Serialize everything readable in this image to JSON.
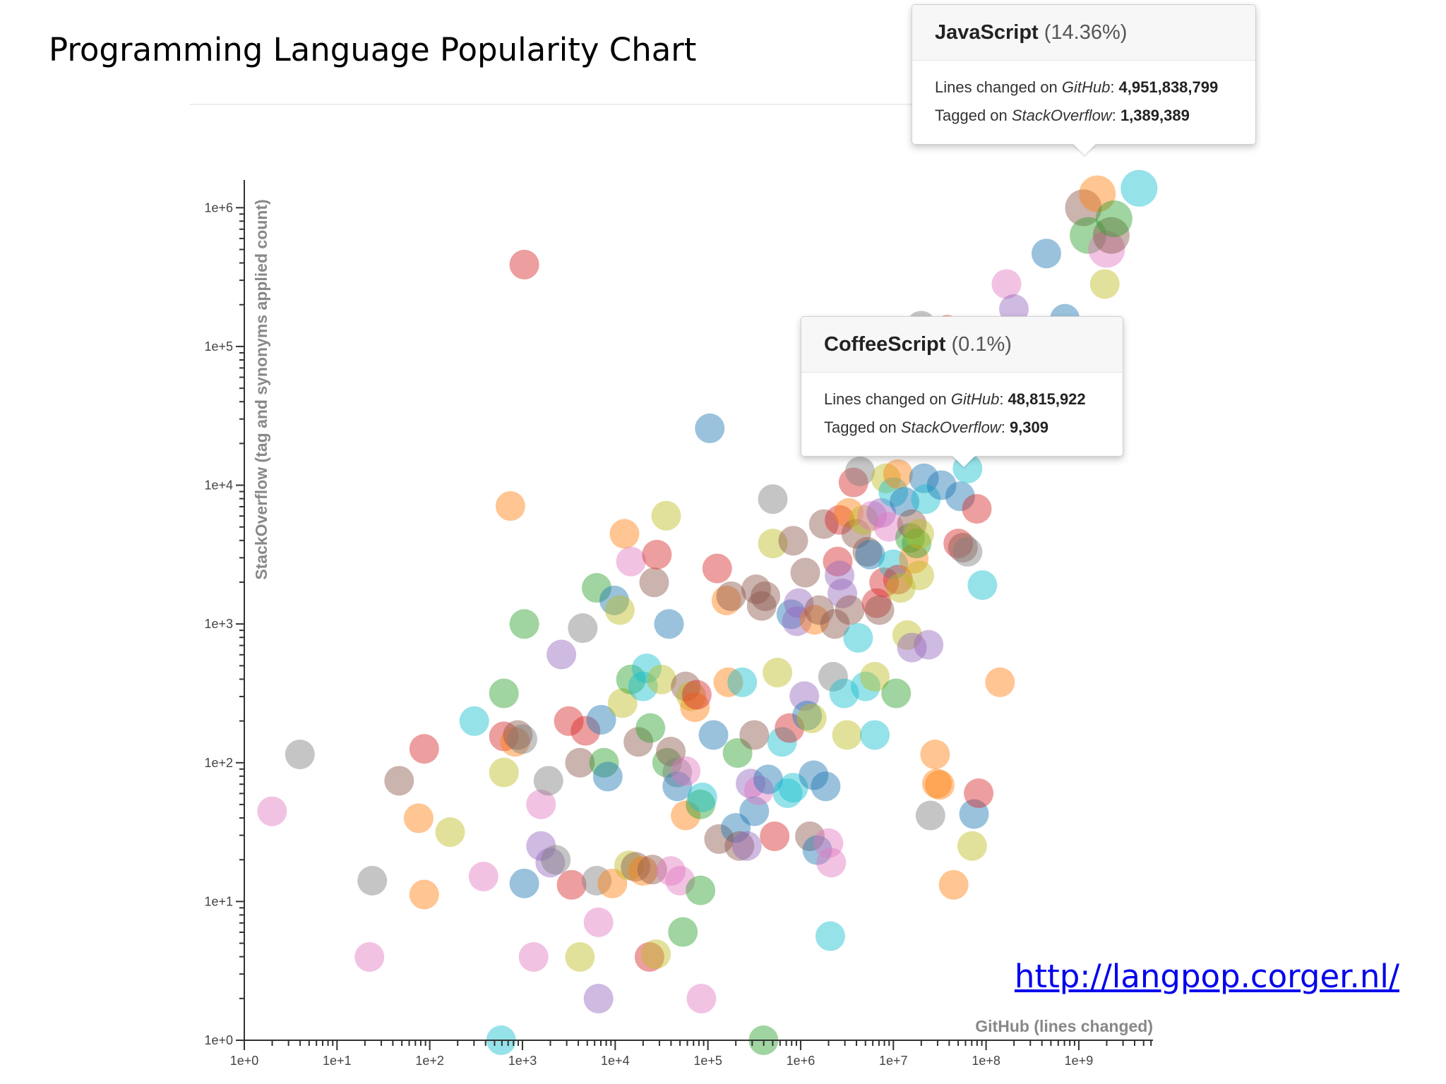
{
  "slide": {
    "title": "Programming Language Popularity Chart",
    "link": "http://langpop.corger.nl/"
  },
  "tooltips": [
    {
      "language": "JavaScript",
      "percent": "(14.36%)",
      "github_label": "Lines changed on ",
      "github_site": "GitHub",
      "github_value": "4,951,838,799",
      "so_label": "Tagged on ",
      "so_site": "StackOverflow",
      "so_value": "1,389,389"
    },
    {
      "language": "CoffeeScript",
      "percent": "(0.1%)",
      "github_label": "Lines changed on ",
      "github_site": "GitHub",
      "github_value": "48,815,922",
      "so_label": "Tagged on ",
      "so_site": "StackOverflow",
      "so_value": "9,309"
    }
  ],
  "chart_data": {
    "type": "scatter",
    "title": "",
    "xlabel": "GitHub (lines changed)",
    "ylabel": "StackOverflow (tag and synonyms applied count)",
    "xscale": "log",
    "yscale": "log",
    "xlim_exp": [
      0,
      9.8
    ],
    "ylim_exp": [
      0,
      6.2
    ],
    "x_ticks": [
      "1e+0",
      "1e+1",
      "1e+2",
      "1e+3",
      "1e+4",
      "1e+5",
      "1e+6",
      "1e+7",
      "1e+8",
      "1e+9"
    ],
    "y_ticks": [
      "1e+0",
      "1e+1",
      "1e+2",
      "1e+3",
      "1e+4",
      "1e+5",
      "1e+6"
    ],
    "grid": false,
    "marker_opacity": 0.45,
    "palette": [
      "#1f77b4",
      "#ff7f0e",
      "#2ca02c",
      "#d62728",
      "#9467bd",
      "#8c564b",
      "#e377c2",
      "#7f7f7f",
      "#bcbd22",
      "#17becf"
    ],
    "points_note": "points as [log10 GitHub lines, log10 StackOverflow count, color index]",
    "points": [
      [
        0.3,
        1.65,
        6
      ],
      [
        0.6,
        2.06,
        7
      ],
      [
        1.35,
        0.6,
        6
      ],
      [
        1.38,
        1.15,
        7
      ],
      [
        1.67,
        1.87,
        5
      ],
      [
        1.88,
        1.6,
        1
      ],
      [
        1.94,
        1.05,
        1
      ],
      [
        1.94,
        2.1,
        3
      ],
      [
        2.22,
        1.5,
        8
      ],
      [
        2.48,
        2.3,
        9
      ],
      [
        2.58,
        1.18,
        6
      ],
      [
        2.77,
        0.0,
        9
      ],
      [
        2.8,
        2.5,
        2
      ],
      [
        2.8,
        2.19,
        3
      ],
      [
        2.8,
        1.93,
        8
      ],
      [
        2.87,
        3.85,
        1
      ],
      [
        2.92,
        2.15,
        1
      ],
      [
        2.95,
        2.2,
        5
      ],
      [
        3.0,
        2.17,
        7
      ],
      [
        3.02,
        3.0,
        2
      ],
      [
        3.02,
        5.59,
        3
      ],
      [
        3.02,
        1.13,
        0
      ],
      [
        3.12,
        0.6,
        6
      ],
      [
        3.2,
        1.4,
        4
      ],
      [
        3.2,
        1.7,
        6
      ],
      [
        3.28,
        1.87,
        7
      ],
      [
        3.3,
        1.28,
        4
      ],
      [
        3.36,
        1.3,
        7
      ],
      [
        3.42,
        2.78,
        4
      ],
      [
        3.5,
        2.3,
        3
      ],
      [
        3.53,
        1.12,
        3
      ],
      [
        3.62,
        0.6,
        8
      ],
      [
        3.62,
        2.0,
        5
      ],
      [
        3.68,
        2.23,
        3
      ],
      [
        3.65,
        2.97,
        7
      ],
      [
        3.8,
        1.15,
        7
      ],
      [
        3.82,
        0.3,
        4
      ],
      [
        3.82,
        0.85,
        6
      ],
      [
        3.85,
        2.31,
        0
      ],
      [
        3.8,
        3.26,
        2
      ],
      [
        3.88,
        2.0,
        2
      ],
      [
        3.92,
        1.9,
        0
      ],
      [
        3.97,
        1.13,
        1
      ],
      [
        3.99,
        3.17,
        0
      ],
      [
        4.05,
        3.1,
        8
      ],
      [
        4.1,
        3.65,
        1
      ],
      [
        4.17,
        3.45,
        6
      ],
      [
        4.15,
        1.26,
        8
      ],
      [
        4.08,
        2.43,
        8
      ],
      [
        4.17,
        2.6,
        2
      ],
      [
        4.22,
        1.25,
        5
      ],
      [
        4.25,
        2.15,
        5
      ],
      [
        4.3,
        1.22,
        1
      ],
      [
        4.3,
        2.55,
        9
      ],
      [
        4.34,
        2.68,
        9
      ],
      [
        4.37,
        0.6,
        3
      ],
      [
        4.4,
        1.23,
        5
      ],
      [
        4.42,
        3.3,
        5
      ],
      [
        4.38,
        2.25,
        2
      ],
      [
        4.45,
        3.5,
        3
      ],
      [
        4.44,
        0.62,
        8
      ],
      [
        4.5,
        2.6,
        8
      ],
      [
        4.55,
        3.78,
        8
      ],
      [
        4.56,
        2.0,
        2
      ],
      [
        4.58,
        3.0,
        0
      ],
      [
        4.6,
        2.08,
        5
      ],
      [
        4.6,
        1.22,
        6
      ],
      [
        4.67,
        1.93,
        7
      ],
      [
        4.67,
        1.83,
        0
      ],
      [
        4.7,
        1.15,
        6
      ],
      [
        4.73,
        0.78,
        2
      ],
      [
        4.76,
        1.94,
        6
      ],
      [
        4.76,
        1.62,
        1
      ],
      [
        4.76,
        2.55,
        5
      ],
      [
        4.82,
        2.48,
        8
      ],
      [
        4.86,
        2.4,
        1
      ],
      [
        4.88,
        2.49,
        3
      ],
      [
        4.92,
        1.08,
        2
      ],
      [
        4.92,
        1.7,
        2
      ],
      [
        4.93,
        0.3,
        6
      ],
      [
        4.94,
        1.75,
        9
      ],
      [
        5.02,
        4.41,
        0
      ],
      [
        5.06,
        2.2,
        0
      ],
      [
        5.1,
        3.4,
        3
      ],
      [
        5.12,
        1.45,
        5
      ],
      [
        5.2,
        3.17,
        1
      ],
      [
        5.25,
        3.2,
        5
      ],
      [
        5.22,
        2.58,
        1
      ],
      [
        5.3,
        1.53,
        0
      ],
      [
        5.32,
        2.07,
        2
      ],
      [
        5.34,
        1.4,
        5
      ],
      [
        5.37,
        2.58,
        9
      ],
      [
        5.42,
        1.4,
        4
      ],
      [
        5.46,
        1.85,
        4
      ],
      [
        5.5,
        2.2,
        5
      ],
      [
        5.5,
        1.65,
        0
      ],
      [
        5.52,
        3.25,
        5
      ],
      [
        5.55,
        1.8,
        6
      ],
      [
        5.58,
        3.13,
        5
      ],
      [
        5.62,
        3.2,
        5
      ],
      [
        5.6,
        0.0,
        2
      ],
      [
        5.65,
        1.88,
        0
      ],
      [
        5.7,
        3.58,
        8
      ],
      [
        5.72,
        1.47,
        3
      ],
      [
        5.7,
        3.9,
        7
      ],
      [
        5.75,
        2.65,
        8
      ],
      [
        5.8,
        2.15,
        9
      ],
      [
        5.86,
        1.78,
        9
      ],
      [
        5.88,
        2.25,
        3
      ],
      [
        5.9,
        3.07,
        0
      ],
      [
        5.92,
        1.82,
        9
      ],
      [
        5.92,
        3.6,
        5
      ],
      [
        5.96,
        3.02,
        4
      ],
      [
        5.98,
        3.15,
        4
      ],
      [
        6.04,
        2.48,
        4
      ],
      [
        6.05,
        3.37,
        5
      ],
      [
        6.07,
        2.34,
        0
      ],
      [
        6.1,
        1.47,
        5
      ],
      [
        6.12,
        2.32,
        8
      ],
      [
        6.14,
        1.91,
        0
      ],
      [
        6.15,
        3.03,
        1
      ],
      [
        6.18,
        1.37,
        0
      ],
      [
        6.2,
        3.1,
        5
      ],
      [
        6.25,
        3.72,
        5
      ],
      [
        6.27,
        1.83,
        0
      ],
      [
        6.3,
        1.42,
        6
      ],
      [
        6.32,
        0.75,
        9
      ],
      [
        6.33,
        1.28,
        6
      ],
      [
        6.35,
        2.62,
        7
      ],
      [
        6.37,
        3.0,
        5
      ],
      [
        6.4,
        3.45,
        3
      ],
      [
        6.42,
        3.75,
        3
      ],
      [
        6.42,
        3.35,
        4
      ],
      [
        6.45,
        3.22,
        4
      ],
      [
        6.47,
        2.5,
        9
      ],
      [
        6.52,
        3.8,
        1
      ],
      [
        6.53,
        3.1,
        5
      ],
      [
        6.5,
        2.2,
        8
      ],
      [
        6.57,
        4.02,
        3
      ],
      [
        6.6,
        3.65,
        5
      ],
      [
        6.62,
        2.9,
        9
      ],
      [
        6.64,
        4.1,
        7
      ],
      [
        6.68,
        3.75,
        8
      ],
      [
        6.7,
        2.55,
        9
      ],
      [
        6.72,
        3.52,
        5
      ],
      [
        6.75,
        3.5,
        0
      ],
      [
        6.77,
        3.78,
        6
      ],
      [
        6.8,
        2.62,
        8
      ],
      [
        6.8,
        2.2,
        9
      ],
      [
        6.82,
        3.15,
        3
      ],
      [
        6.85,
        3.1,
        5
      ],
      [
        6.87,
        3.8,
        4
      ],
      [
        6.9,
        3.3,
        3
      ],
      [
        6.92,
        4.05,
        8
      ],
      [
        6.95,
        3.7,
        6
      ],
      [
        7.0,
        3.43,
        9
      ],
      [
        7.0,
        3.95,
        9
      ],
      [
        7.03,
        2.5,
        2
      ],
      [
        7.05,
        3.32,
        3
      ],
      [
        7.05,
        4.08,
        1
      ],
      [
        7.08,
        3.26,
        8
      ],
      [
        7.12,
        3.88,
        0
      ],
      [
        7.15,
        2.92,
        8
      ],
      [
        7.18,
        3.62,
        2
      ],
      [
        7.2,
        3.72,
        5
      ],
      [
        7.22,
        3.47,
        1
      ],
      [
        7.2,
        2.83,
        4
      ],
      [
        7.25,
        3.58,
        2
      ],
      [
        7.28,
        3.65,
        8
      ],
      [
        7.28,
        3.35,
        8
      ],
      [
        7.3,
        5.15,
        7
      ],
      [
        7.33,
        4.05,
        0
      ],
      [
        7.35,
        3.9,
        9
      ],
      [
        7.38,
        2.85,
        4
      ],
      [
        7.4,
        1.62,
        7
      ],
      [
        7.45,
        2.06,
        1
      ],
      [
        7.47,
        1.85,
        1
      ],
      [
        7.5,
        1.84,
        1
      ],
      [
        7.52,
        4.0,
        0
      ],
      [
        7.58,
        5.12,
        3
      ],
      [
        7.65,
        1.12,
        1
      ],
      [
        7.7,
        3.58,
        3
      ],
      [
        7.72,
        3.92,
        0
      ],
      [
        7.75,
        3.55,
        5
      ],
      [
        7.8,
        4.12,
        9
      ],
      [
        7.8,
        3.52,
        7
      ],
      [
        7.85,
        1.4,
        8
      ],
      [
        7.87,
        1.63,
        0
      ],
      [
        7.9,
        3.83,
        3
      ],
      [
        7.92,
        1.78,
        3
      ],
      [
        7.96,
        3.28,
        9
      ],
      [
        8.15,
        2.58,
        1
      ],
      [
        8.22,
        5.45,
        6
      ],
      [
        8.3,
        5.27,
        4
      ],
      [
        8.65,
        5.67,
        0
      ],
      [
        8.85,
        5.2,
        0
      ],
      [
        9.05,
        6.0,
        5
      ],
      [
        9.1,
        5.8,
        2
      ],
      [
        9.2,
        6.1,
        1
      ],
      [
        9.28,
        5.45,
        8
      ],
      [
        9.3,
        5.7,
        6
      ],
      [
        9.35,
        5.8,
        5
      ],
      [
        9.38,
        5.92,
        2
      ],
      [
        9.65,
        6.14,
        9
      ]
    ]
  }
}
